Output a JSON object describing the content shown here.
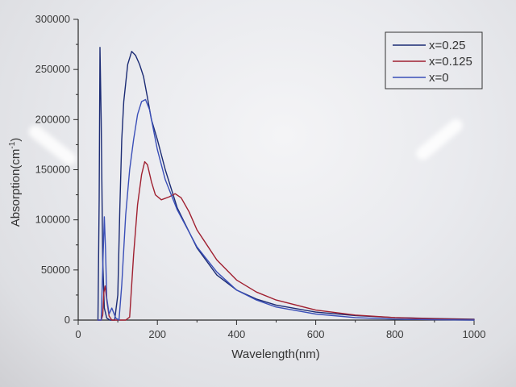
{
  "chart_data": {
    "type": "line",
    "title": "",
    "xlabel": "Wavelength(nm)",
    "ylabel_parts": {
      "main": "Absorption(cm",
      "superscript": "-1",
      "close": ")"
    },
    "xlim": [
      0,
      1000
    ],
    "ylim": [
      0,
      300000
    ],
    "x_ticks": [
      0,
      200,
      400,
      600,
      800,
      1000
    ],
    "y_ticks": [
      0,
      50000,
      100000,
      150000,
      200000,
      250000,
      300000
    ],
    "x_tick_labels": [
      "0",
      "200",
      "400",
      "600",
      "800",
      "1000"
    ],
    "y_tick_labels": [
      "0",
      "50000",
      "100000",
      "150000",
      "200000",
      "250000",
      "300000"
    ],
    "legend_position": "top-right",
    "grid": false,
    "series": [
      {
        "name": "x=0.25",
        "color": "#1b2b74",
        "x": [
          50,
          53,
          55,
          58,
          62,
          66,
          72,
          80,
          92,
          100,
          105,
          110,
          115,
          125,
          135,
          145,
          155,
          165,
          175,
          185,
          200,
          220,
          250,
          300,
          350,
          400,
          450,
          500,
          600,
          700,
          800,
          900,
          1000
        ],
        "y": [
          0,
          120000,
          272000,
          200000,
          60000,
          12000,
          2000,
          0,
          0,
          25000,
          110000,
          180000,
          218000,
          255000,
          268000,
          264000,
          255000,
          243000,
          222000,
          200000,
          180000,
          150000,
          112000,
          72000,
          45000,
          30000,
          21000,
          15000,
          8000,
          4500,
          2500,
          1500,
          800
        ]
      },
      {
        "name": "x=0.125",
        "color": "#a02030",
        "x": [
          50,
          58,
          62,
          65,
          68,
          72,
          78,
          85,
          100,
          120,
          130,
          140,
          150,
          160,
          168,
          175,
          185,
          195,
          210,
          230,
          245,
          260,
          280,
          300,
          350,
          400,
          450,
          500,
          600,
          700,
          800,
          900,
          1000
        ],
        "y": [
          0,
          0,
          5000,
          28000,
          34000,
          20000,
          4000,
          0,
          0,
          0,
          3000,
          65000,
          115000,
          145000,
          158000,
          155000,
          138000,
          125000,
          120000,
          123000,
          126000,
          122000,
          108000,
          90000,
          60000,
          40000,
          28000,
          20000,
          10000,
          5000,
          2500,
          1200,
          500
        ]
      },
      {
        "name": "x=0",
        "color": "#3a4fb8",
        "x": [
          50,
          58,
          63,
          66,
          69,
          72,
          78,
          85,
          95,
          103,
          110,
          120,
          130,
          140,
          150,
          160,
          170,
          180,
          190,
          200,
          220,
          250,
          300,
          350,
          400,
          450,
          500,
          600,
          700,
          800,
          900,
          1000
        ],
        "y": [
          0,
          0,
          65000,
          103000,
          70000,
          22000,
          6000,
          12000,
          2000,
          0,
          35000,
          105000,
          150000,
          180000,
          205000,
          218000,
          220000,
          210000,
          190000,
          170000,
          140000,
          110000,
          73000,
          48000,
          30000,
          20000,
          13000,
          6000,
          2500,
          1000,
          300,
          0
        ]
      }
    ]
  }
}
